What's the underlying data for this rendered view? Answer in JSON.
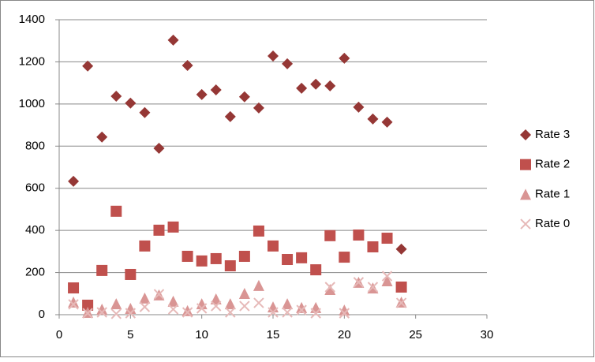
{
  "chart_data": {
    "type": "scatter",
    "x": [
      1,
      2,
      3,
      4,
      5,
      6,
      7,
      8,
      9,
      10,
      11,
      12,
      13,
      14,
      15,
      16,
      17,
      18,
      19,
      20,
      21,
      22,
      23,
      24
    ],
    "series": [
      {
        "name": "Rate 3",
        "color": "#953735",
        "marker": "diamond",
        "values": [
          633,
          1180,
          843,
          1037,
          1004,
          959,
          790,
          1303,
          1183,
          1045,
          1067,
          940,
          1034,
          981,
          1228,
          1191,
          1075,
          1094,
          1086,
          1217,
          985,
          929,
          914,
          311
        ]
      },
      {
        "name": "Rate 2",
        "color": "#c0504d",
        "marker": "square",
        "values": [
          127,
          45,
          210,
          491,
          191,
          326,
          401,
          416,
          277,
          255,
          266,
          232,
          277,
          397,
          326,
          262,
          270,
          213,
          375,
          273,
          378,
          322,
          363,
          131
        ]
      },
      {
        "name": "Rate 1",
        "color": "#d99594",
        "marker": "triangle",
        "values": [
          60,
          11,
          26,
          52,
          30,
          79,
          94,
          64,
          19,
          52,
          75,
          52,
          101,
          139,
          37,
          52,
          34,
          34,
          120,
          22,
          154,
          127,
          161,
          60
        ]
      },
      {
        "name": "Rate 0",
        "color": "#e6b9b8",
        "marker": "x",
        "values": [
          49,
          7,
          11,
          4,
          7,
          37,
          97,
          26,
          11,
          30,
          41,
          11,
          41,
          56,
          11,
          11,
          22,
          7,
          131,
          7,
          154,
          131,
          183,
          56
        ]
      }
    ],
    "xlim": [
      0,
      30
    ],
    "xticks": [
      0,
      5,
      10,
      15,
      20,
      25,
      30
    ],
    "ylim": [
      0,
      1400
    ],
    "yticks": [
      0,
      200,
      400,
      600,
      800,
      1000,
      1200,
      1400
    ],
    "grid": true,
    "legend": "right"
  }
}
